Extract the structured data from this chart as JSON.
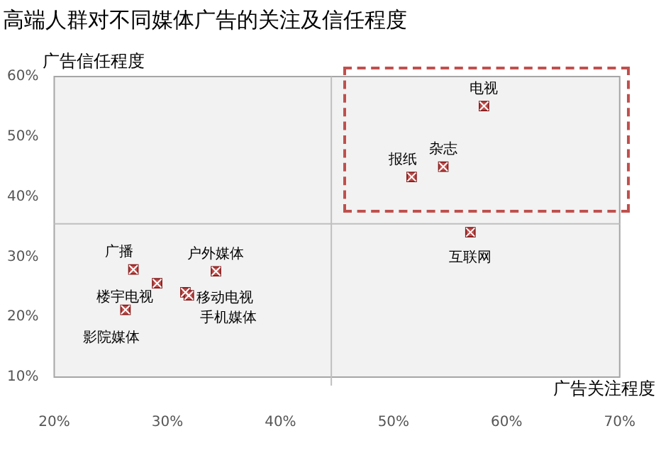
{
  "chart_data": {
    "type": "scatter",
    "title": "高端人群对不同媒体广告的关注及信任程度",
    "xlabel": "广告关注程度",
    "ylabel": "广告信任程度",
    "x": [
      58,
      54.4,
      51.6,
      56.8,
      27,
      29.1,
      34.3,
      31.6,
      31.9,
      26.3
    ],
    "series": [
      {
        "color": "#c0504d",
        "values": [
          55.1,
          45,
          43.3,
          34.1,
          27.9,
          25.6,
          27.6,
          24.1,
          23.6,
          21.2
        ]
      }
    ],
    "marker": "square",
    "xlim": [
      20,
      70
    ],
    "ylim": [
      10,
      60
    ],
    "xticks": [
      {
        "value": 20,
        "label": "20%"
      },
      {
        "value": 30,
        "label": "30%"
      },
      {
        "value": 40,
        "label": "40%"
      },
      {
        "value": 50,
        "label": "50%"
      },
      {
        "value": 60,
        "label": "60%"
      },
      {
        "value": 70,
        "label": "70%"
      }
    ],
    "yticks": [
      {
        "value": 10,
        "label": "10%"
      },
      {
        "value": 20,
        "label": "20%"
      },
      {
        "value": 30,
        "label": "30%"
      },
      {
        "value": 40,
        "label": "40%"
      },
      {
        "value": 50,
        "label": "50%"
      },
      {
        "value": 60,
        "label": "60%"
      }
    ],
    "ref_lines": [
      {
        "axis": "x",
        "value": 44.5,
        "color": "#bfbfbf"
      },
      {
        "axis": "y",
        "value": 35.5,
        "color": "#bfbfbf"
      }
    ],
    "annotations": [
      {
        "text": "电视",
        "x": 58,
        "y": 55.1
      },
      {
        "text": "杂志",
        "x": 54.4,
        "y": 45
      },
      {
        "text": "报纸",
        "x": 51.6,
        "y": 43.3
      },
      {
        "text": "互联网",
        "x": 56.8,
        "y": 34.1
      },
      {
        "text": "广播",
        "x": 27,
        "y": 27.9
      },
      {
        "text": "楼宇电视",
        "x": 29.1,
        "y": 25.6
      },
      {
        "text": "户外媒体",
        "x": 34.3,
        "y": 27.6
      },
      {
        "text": "移动电视",
        "x": 31.6,
        "y": 24.1
      },
      {
        "text": "手机媒体",
        "x": 31.9,
        "y": 23.6
      },
      {
        "text": "影院媒体",
        "x": 26.3,
        "y": 21.2
      }
    ],
    "legend": false
  }
}
